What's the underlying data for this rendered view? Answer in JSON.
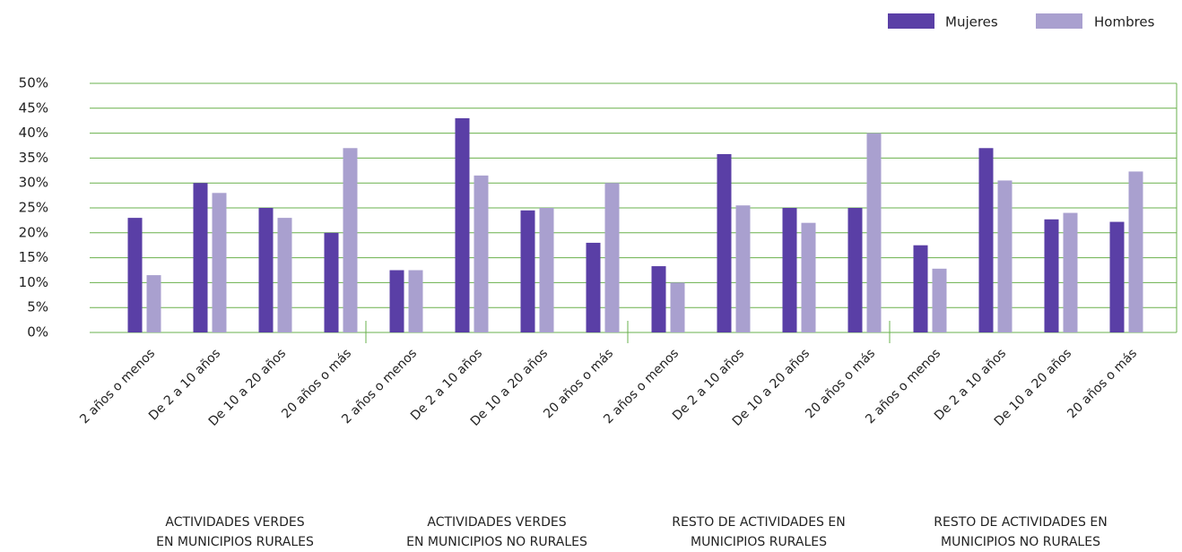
{
  "chart_data": {
    "type": "bar",
    "categories": [
      "2 años o menos",
      "De 2 a 10 años",
      "De 10 a 20 años",
      "20 años o más",
      "2 años o menos",
      "De 2 a 10 años",
      "De 10 a 20 años",
      "20 años o más",
      "2 años o menos",
      "De 2 a 10 años",
      "De 10 a 20 años",
      "20 años o más",
      "2 años o menos",
      "De 2 a 10 años",
      "De 10 a 20 años",
      "20 años o más"
    ],
    "groups": [
      [
        "ACTIVIDADES VERDES",
        "EN MUNICIPIOS RURALES"
      ],
      [
        "ACTIVIDADES VERDES",
        "EN MUNICIPIOS NO RURALES"
      ],
      [
        "RESTO DE ACTIVIDADES EN",
        "MUNICIPIOS RURALES"
      ],
      [
        "RESTO DE ACTIVIDADES EN",
        "MUNICIPIOS NO RURALES"
      ]
    ],
    "series": [
      {
        "name": "Mujeres",
        "color": "#5a3fa6",
        "values": [
          23,
          30,
          25,
          20,
          12.5,
          43,
          24.5,
          18,
          13.3,
          35.8,
          25,
          25,
          17.5,
          37,
          22.7,
          22.2
        ]
      },
      {
        "name": "Hombres",
        "color": "#a9a0cf",
        "values": [
          11.5,
          28,
          23,
          37,
          12.5,
          31.5,
          25,
          30,
          10,
          25.5,
          22,
          40,
          12.8,
          30.5,
          24,
          32.3
        ]
      }
    ],
    "ylim": [
      0,
      50
    ],
    "yticks": [
      {
        "value": 0,
        "label": "0%"
      },
      {
        "value": 5,
        "label": "5%"
      },
      {
        "value": 10,
        "label": "10%"
      },
      {
        "value": 15,
        "label": "15%"
      },
      {
        "value": 20,
        "label": "20%"
      },
      {
        "value": 25,
        "label": "25%"
      },
      {
        "value": 30,
        "label": "30%"
      },
      {
        "value": 35,
        "label": "35%"
      },
      {
        "value": 40,
        "label": "40%"
      },
      {
        "value": 45,
        "label": "45%"
      },
      {
        "value": 50,
        "label": "50%"
      }
    ],
    "grid": true,
    "legend": "top-right"
  }
}
